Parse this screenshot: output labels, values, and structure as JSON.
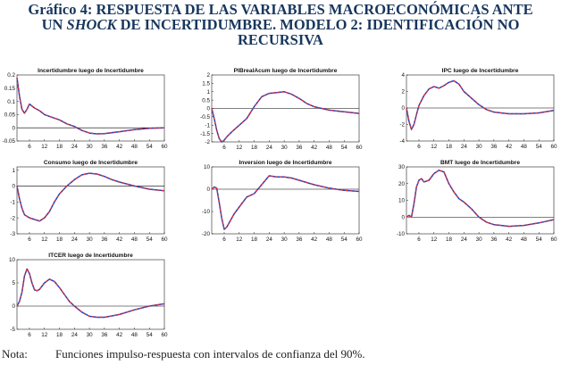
{
  "figure": {
    "title_line1": "Gráfico 4: RESPUESTA DE LAS VARIABLES MACROECONÓMICAS ANTE",
    "title_line2_prefix": "UN ",
    "title_line2_italic": "SHOCK",
    "title_line2_suffix": " DE INCERTIDUMBRE. MODELO 2: IDENTIFICACIÓN NO",
    "title_line3": "RECURSIVA",
    "note_label": "Nota:",
    "note_text": "Funciones impulso-respuesta con intervalos de confianza del 90%."
  },
  "colors": {
    "irf_line": "#1f3fbf",
    "band_line": "#e0303a",
    "zero_line": "#000000",
    "frame": "#222222"
  },
  "chart_data": [
    {
      "type": "line",
      "title": "Incertidumbre luego de Incertidumbre",
      "xticks": [
        6,
        12,
        18,
        24,
        30,
        36,
        42,
        48,
        54,
        60
      ],
      "xlim": [
        1,
        60
      ],
      "yticks": [
        -0.05,
        0,
        0.05,
        0.1,
        0.15,
        0.2
      ],
      "ytick_labels": [
        "-0.05",
        "0",
        "0.05",
        "0.1",
        "0.15",
        "0.2"
      ],
      "ylim": [
        -0.05,
        0.2
      ],
      "x": [
        1,
        2,
        3,
        4,
        5,
        6,
        8,
        10,
        12,
        15,
        18,
        21,
        24,
        27,
        30,
        33,
        36,
        42,
        48,
        54,
        60
      ],
      "series": [
        {
          "name": "IRF",
          "values": [
            0.19,
            0.12,
            0.07,
            0.055,
            0.07,
            0.09,
            0.075,
            0.065,
            0.05,
            0.04,
            0.03,
            0.015,
            0.005,
            -0.01,
            -0.02,
            -0.023,
            -0.022,
            -0.015,
            -0.007,
            -0.002,
            0.0
          ]
        }
      ]
    },
    {
      "type": "line",
      "title": "PIBrealAcum luego de Incertidumbre",
      "xticks": [
        6,
        12,
        18,
        24,
        30,
        36,
        42,
        48,
        54,
        60
      ],
      "xlim": [
        1,
        60
      ],
      "yticks": [
        -2,
        -1.5,
        -1,
        -0.5,
        0,
        0.5,
        1,
        1.5,
        2
      ],
      "ytick_labels": [
        "-2",
        "-1.5",
        "-1",
        "-0.5",
        "0",
        "0.5",
        "1",
        "1.5",
        "2"
      ],
      "ylim": [
        -2,
        2
      ],
      "x": [
        1,
        2,
        3,
        4,
        5,
        6,
        7,
        9,
        12,
        15,
        18,
        21,
        24,
        27,
        30,
        33,
        36,
        39,
        42,
        48,
        54,
        60
      ],
      "series": [
        {
          "name": "IRF",
          "values": [
            0.0,
            -0.6,
            -1.3,
            -1.8,
            -2.0,
            -1.9,
            -1.7,
            -1.4,
            -1.0,
            -0.6,
            0.1,
            0.7,
            0.9,
            0.95,
            1.0,
            0.85,
            0.6,
            0.3,
            0.1,
            -0.1,
            -0.2,
            -0.3
          ]
        }
      ]
    },
    {
      "type": "line",
      "title": "IPC luego de Incertidumbre",
      "xticks": [
        6,
        12,
        18,
        24,
        30,
        36,
        42,
        48,
        54,
        60
      ],
      "xlim": [
        1,
        60
      ],
      "yticks": [
        -4,
        -2,
        0,
        2,
        4
      ],
      "ytick_labels": [
        "-4",
        "-2",
        "0",
        "2",
        "4"
      ],
      "ylim": [
        -4,
        4
      ],
      "x": [
        1,
        2,
        3,
        4,
        5,
        6,
        8,
        10,
        12,
        14,
        16,
        18,
        20,
        22,
        24,
        27,
        30,
        33,
        36,
        42,
        48,
        54,
        60
      ],
      "series": [
        {
          "name": "IRF",
          "values": [
            0.0,
            -1.6,
            -2.6,
            -2.0,
            -0.8,
            0.3,
            1.5,
            2.3,
            2.6,
            2.4,
            2.7,
            3.1,
            3.3,
            2.9,
            2.0,
            1.2,
            0.4,
            -0.2,
            -0.5,
            -0.7,
            -0.7,
            -0.6,
            -0.3
          ]
        }
      ]
    },
    {
      "type": "line",
      "title": "Consumo luego de Incertidumbre",
      "xticks": [
        6,
        12,
        18,
        24,
        30,
        36,
        42,
        48,
        54,
        60
      ],
      "xlim": [
        1,
        60
      ],
      "yticks": [
        -3,
        -2,
        -1,
        0,
        1
      ],
      "ytick_labels": [
        "-3",
        "-2",
        "-1",
        "0",
        "1"
      ],
      "ylim": [
        -3,
        1.2
      ],
      "x": [
        1,
        2,
        3,
        4,
        6,
        8,
        10,
        12,
        14,
        16,
        18,
        21,
        24,
        27,
        30,
        33,
        36,
        39,
        42,
        48,
        54,
        60
      ],
      "series": [
        {
          "name": "IRF",
          "values": [
            0.0,
            -0.8,
            -1.4,
            -1.8,
            -2.0,
            -2.1,
            -2.2,
            -2.0,
            -1.6,
            -1.0,
            -0.5,
            0.0,
            0.4,
            0.7,
            0.8,
            0.75,
            0.6,
            0.4,
            0.25,
            0.0,
            -0.2,
            -0.3
          ]
        }
      ]
    },
    {
      "type": "line",
      "title": "Inversion luego de Incertidumbre",
      "xticks": [
        6,
        12,
        18,
        24,
        30,
        36,
        42,
        48,
        54,
        60
      ],
      "xlim": [
        1,
        60
      ],
      "yticks": [
        -20,
        -10,
        0,
        10
      ],
      "ytick_labels": [
        "-20",
        "-10",
        "0",
        "10"
      ],
      "ylim": [
        -20,
        10
      ],
      "x": [
        1,
        2,
        3,
        4,
        5,
        6,
        7,
        8,
        10,
        12,
        15,
        18,
        21,
        24,
        27,
        30,
        33,
        36,
        42,
        48,
        54,
        60
      ],
      "series": [
        {
          "name": "IRF",
          "values": [
            0.0,
            1.0,
            0.5,
            -6.0,
            -13.0,
            -18.0,
            -17.0,
            -15.0,
            -11.0,
            -8.0,
            -3.5,
            -2.0,
            2.0,
            6.0,
            5.5,
            5.5,
            5.0,
            4.0,
            2.0,
            0.5,
            -0.5,
            -1.0
          ]
        }
      ]
    },
    {
      "type": "line",
      "title": "BMT luego de Incertidumbre",
      "xticks": [
        6,
        12,
        18,
        24,
        30,
        36,
        42,
        48,
        54,
        60
      ],
      "xlim": [
        1,
        60
      ],
      "yticks": [
        -10,
        0,
        10,
        20,
        30
      ],
      "ytick_labels": [
        "-10",
        "0",
        "10",
        "20",
        "30"
      ],
      "ylim": [
        -10,
        30
      ],
      "x": [
        1,
        2,
        3,
        4,
        5,
        6,
        7,
        8,
        10,
        12,
        14,
        16,
        18,
        20,
        22,
        24,
        27,
        30,
        33,
        36,
        39,
        42,
        48,
        54,
        60
      ],
      "series": [
        {
          "name": "IRF",
          "values": [
            0.0,
            1.0,
            0.0,
            8.0,
            18.0,
            22.0,
            23.0,
            21.0,
            22.0,
            26.0,
            28.0,
            27.0,
            20.0,
            15.0,
            11.0,
            9.0,
            5.0,
            0.0,
            -3.0,
            -4.5,
            -5.0,
            -5.5,
            -5.0,
            -3.5,
            -1.5
          ]
        }
      ]
    },
    {
      "type": "line",
      "title": "ITCER luego de Incertidumbre",
      "xticks": [
        6,
        12,
        18,
        24,
        30,
        36,
        42,
        48,
        54,
        60
      ],
      "xlim": [
        1,
        60
      ],
      "yticks": [
        -5,
        0,
        5,
        10
      ],
      "ytick_labels": [
        "-5",
        "0",
        "5",
        "10"
      ],
      "ylim": [
        -5,
        10
      ],
      "x": [
        1,
        2,
        3,
        4,
        5,
        6,
        7,
        8,
        9,
        10,
        12,
        14,
        16,
        18,
        20,
        22,
        24,
        27,
        30,
        33,
        36,
        42,
        48,
        54,
        60
      ],
      "series": [
        {
          "name": "IRF",
          "values": [
            0.0,
            1.0,
            3.0,
            6.5,
            8.0,
            7.0,
            5.0,
            3.5,
            3.3,
            3.6,
            5.0,
            5.8,
            5.3,
            4.0,
            2.5,
            1.0,
            0.0,
            -1.3,
            -2.2,
            -2.4,
            -2.4,
            -1.8,
            -0.8,
            0.0,
            0.5
          ]
        }
      ]
    }
  ]
}
